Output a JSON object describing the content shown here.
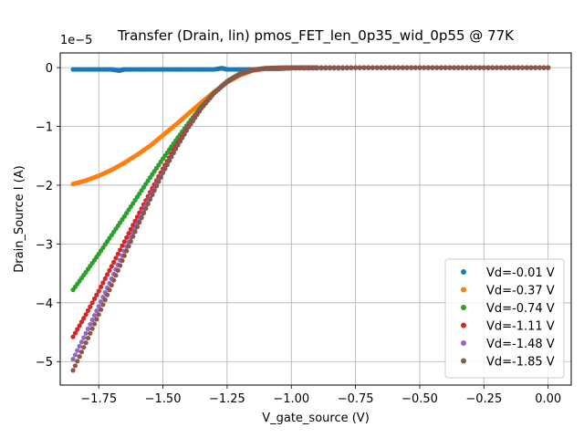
{
  "chart_data": {
    "type": "scatter",
    "title": "Transfer (Drain, lin) pmos_FET_len_0p35_wid_0p55 @ 77K",
    "xlabel": "V_gate_source (V)",
    "ylabel": "Drain_Source I (A)",
    "y_offset_label": "1e−5",
    "xlim": [
      -1.9,
      0.09
    ],
    "ylim": [
      -5.4,
      0.25
    ],
    "grid": true,
    "legend_position": "lower-right",
    "x_ticks": [
      {
        "value": -1.75,
        "label": "−1.75"
      },
      {
        "value": -1.5,
        "label": "−1.50"
      },
      {
        "value": -1.25,
        "label": "−1.25"
      },
      {
        "value": -1.0,
        "label": "−1.00"
      },
      {
        "value": -0.75,
        "label": "−0.75"
      },
      {
        "value": -0.5,
        "label": "−0.50"
      },
      {
        "value": -0.25,
        "label": "−0.25"
      },
      {
        "value": 0.0,
        "label": "0.00"
      }
    ],
    "y_ticks": [
      {
        "value": 0,
        "label": "0"
      },
      {
        "value": -1,
        "label": "−1"
      },
      {
        "value": -2,
        "label": "−2"
      },
      {
        "value": -3,
        "label": "−3"
      },
      {
        "value": -4,
        "label": "−4"
      },
      {
        "value": -5,
        "label": "−5"
      }
    ],
    "series": [
      {
        "name": "Vd=-0.01 V",
        "color": "#1f77b4",
        "x": [
          -1.85,
          -1.8,
          -1.75,
          -1.7,
          -1.67,
          -1.65,
          -1.6,
          -1.55,
          -1.5,
          -1.45,
          -1.4,
          -1.35,
          -1.3,
          -1.27,
          -1.25,
          -1.2,
          -1.15,
          -1.1,
          -1.05,
          -1.0,
          -0.9,
          -0.8,
          -0.7,
          -0.6,
          -0.5,
          -0.4,
          -0.3,
          -0.2,
          -0.1,
          0.0
        ],
        "y": [
          -0.03,
          -0.03,
          -0.03,
          -0.03,
          -0.05,
          -0.03,
          -0.03,
          -0.03,
          -0.03,
          -0.03,
          -0.03,
          -0.03,
          -0.03,
          -0.01,
          -0.03,
          -0.03,
          -0.03,
          -0.02,
          -0.02,
          -0.01,
          -0.01,
          -0.01,
          0.0,
          0.0,
          0.0,
          0.0,
          0.0,
          0.0,
          0.0,
          0.0
        ]
      },
      {
        "name": "Vd=-0.37 V",
        "color": "#ff7f0e",
        "x": [
          -1.85,
          -1.8,
          -1.75,
          -1.7,
          -1.65,
          -1.6,
          -1.55,
          -1.5,
          -1.45,
          -1.4,
          -1.35,
          -1.3,
          -1.25,
          -1.2,
          -1.15,
          -1.1,
          -1.05,
          -1.0,
          -0.95,
          -0.9,
          -0.8,
          -0.7,
          -0.6,
          -0.5,
          -0.4,
          -0.3,
          -0.2,
          -0.1,
          0.0
        ],
        "y": [
          -1.98,
          -1.92,
          -1.84,
          -1.74,
          -1.62,
          -1.48,
          -1.33,
          -1.15,
          -0.97,
          -0.78,
          -0.59,
          -0.41,
          -0.25,
          -0.13,
          -0.05,
          -0.015,
          -0.005,
          -0.002,
          -0.001,
          0.0,
          0.0,
          0.0,
          0.0,
          0.0,
          0.0,
          0.0,
          0.0,
          0.0,
          0.0
        ]
      },
      {
        "name": "Vd=-0.74 V",
        "color": "#2ca02c",
        "x": [
          -1.85,
          -1.8,
          -1.75,
          -1.7,
          -1.65,
          -1.6,
          -1.55,
          -1.5,
          -1.45,
          -1.4,
          -1.35,
          -1.3,
          -1.25,
          -1.2,
          -1.15,
          -1.1,
          -1.05,
          -1.0,
          -0.95,
          -0.9,
          -0.8,
          -0.7,
          -0.6,
          -0.5,
          -0.4,
          -0.3,
          -0.2,
          -0.1,
          0.0
        ],
        "y": [
          -3.78,
          -3.48,
          -3.17,
          -2.85,
          -2.53,
          -2.2,
          -1.87,
          -1.55,
          -1.24,
          -0.94,
          -0.66,
          -0.42,
          -0.23,
          -0.1,
          -0.035,
          -0.01,
          -0.003,
          -0.001,
          0.0,
          0.0,
          0.0,
          0.0,
          0.0,
          0.0,
          0.0,
          0.0,
          0.0,
          0.0,
          0.0
        ]
      },
      {
        "name": "Vd=-1.11 V",
        "color": "#d62728",
        "x": [
          -1.85,
          -1.8,
          -1.75,
          -1.7,
          -1.65,
          -1.6,
          -1.55,
          -1.5,
          -1.45,
          -1.4,
          -1.35,
          -1.3,
          -1.25,
          -1.2,
          -1.15,
          -1.1,
          -1.05,
          -1.0,
          -0.95,
          -0.9,
          -0.8,
          -0.7,
          -0.6,
          -0.5,
          -0.4,
          -0.3,
          -0.2,
          -0.1,
          0.0
        ],
        "y": [
          -4.58,
          -4.2,
          -3.8,
          -3.38,
          -2.96,
          -2.54,
          -2.12,
          -1.72,
          -1.34,
          -0.99,
          -0.68,
          -0.43,
          -0.24,
          -0.11,
          -0.04,
          -0.012,
          -0.004,
          -0.001,
          0.0,
          0.0,
          0.0,
          0.0,
          0.0,
          0.0,
          0.0,
          0.0,
          0.0,
          0.0,
          0.0
        ]
      },
      {
        "name": "Vd=-1.48 V",
        "color": "#9467bd",
        "x": [
          -1.85,
          -1.8,
          -1.75,
          -1.7,
          -1.65,
          -1.6,
          -1.55,
          -1.5,
          -1.45,
          -1.4,
          -1.35,
          -1.3,
          -1.25,
          -1.2,
          -1.15,
          -1.1,
          -1.05,
          -1.0,
          -0.95,
          -0.9,
          -0.8,
          -0.7,
          -0.6,
          -0.5,
          -0.4,
          -0.3,
          -0.2,
          -0.1,
          0.0
        ],
        "y": [
          -4.96,
          -4.52,
          -4.06,
          -3.59,
          -3.12,
          -2.66,
          -2.21,
          -1.78,
          -1.38,
          -1.01,
          -0.69,
          -0.43,
          -0.24,
          -0.11,
          -0.04,
          -0.012,
          -0.004,
          -0.001,
          0.0,
          0.0,
          0.0,
          0.0,
          0.0,
          0.0,
          0.0,
          0.0,
          0.0,
          0.0,
          0.0
        ]
      },
      {
        "name": "Vd=-1.85 V",
        "color": "#8c564b",
        "x": [
          -1.85,
          -1.8,
          -1.75,
          -1.7,
          -1.65,
          -1.6,
          -1.55,
          -1.5,
          -1.45,
          -1.4,
          -1.35,
          -1.3,
          -1.25,
          -1.2,
          -1.15,
          -1.1,
          -1.05,
          -1.0,
          -0.95,
          -0.9,
          -0.8,
          -0.7,
          -0.6,
          -0.5,
          -0.4,
          -0.3,
          -0.2,
          -0.1,
          0.0
        ],
        "y": [
          -5.15,
          -4.68,
          -4.2,
          -3.7,
          -3.2,
          -2.71,
          -2.24,
          -1.79,
          -1.38,
          -1.01,
          -0.69,
          -0.43,
          -0.24,
          -0.11,
          -0.04,
          -0.012,
          -0.004,
          -0.001,
          0.0,
          0.0,
          0.0,
          0.0,
          0.0,
          0.0,
          0.0,
          0.0,
          0.0,
          0.0,
          0.0
        ]
      }
    ]
  }
}
